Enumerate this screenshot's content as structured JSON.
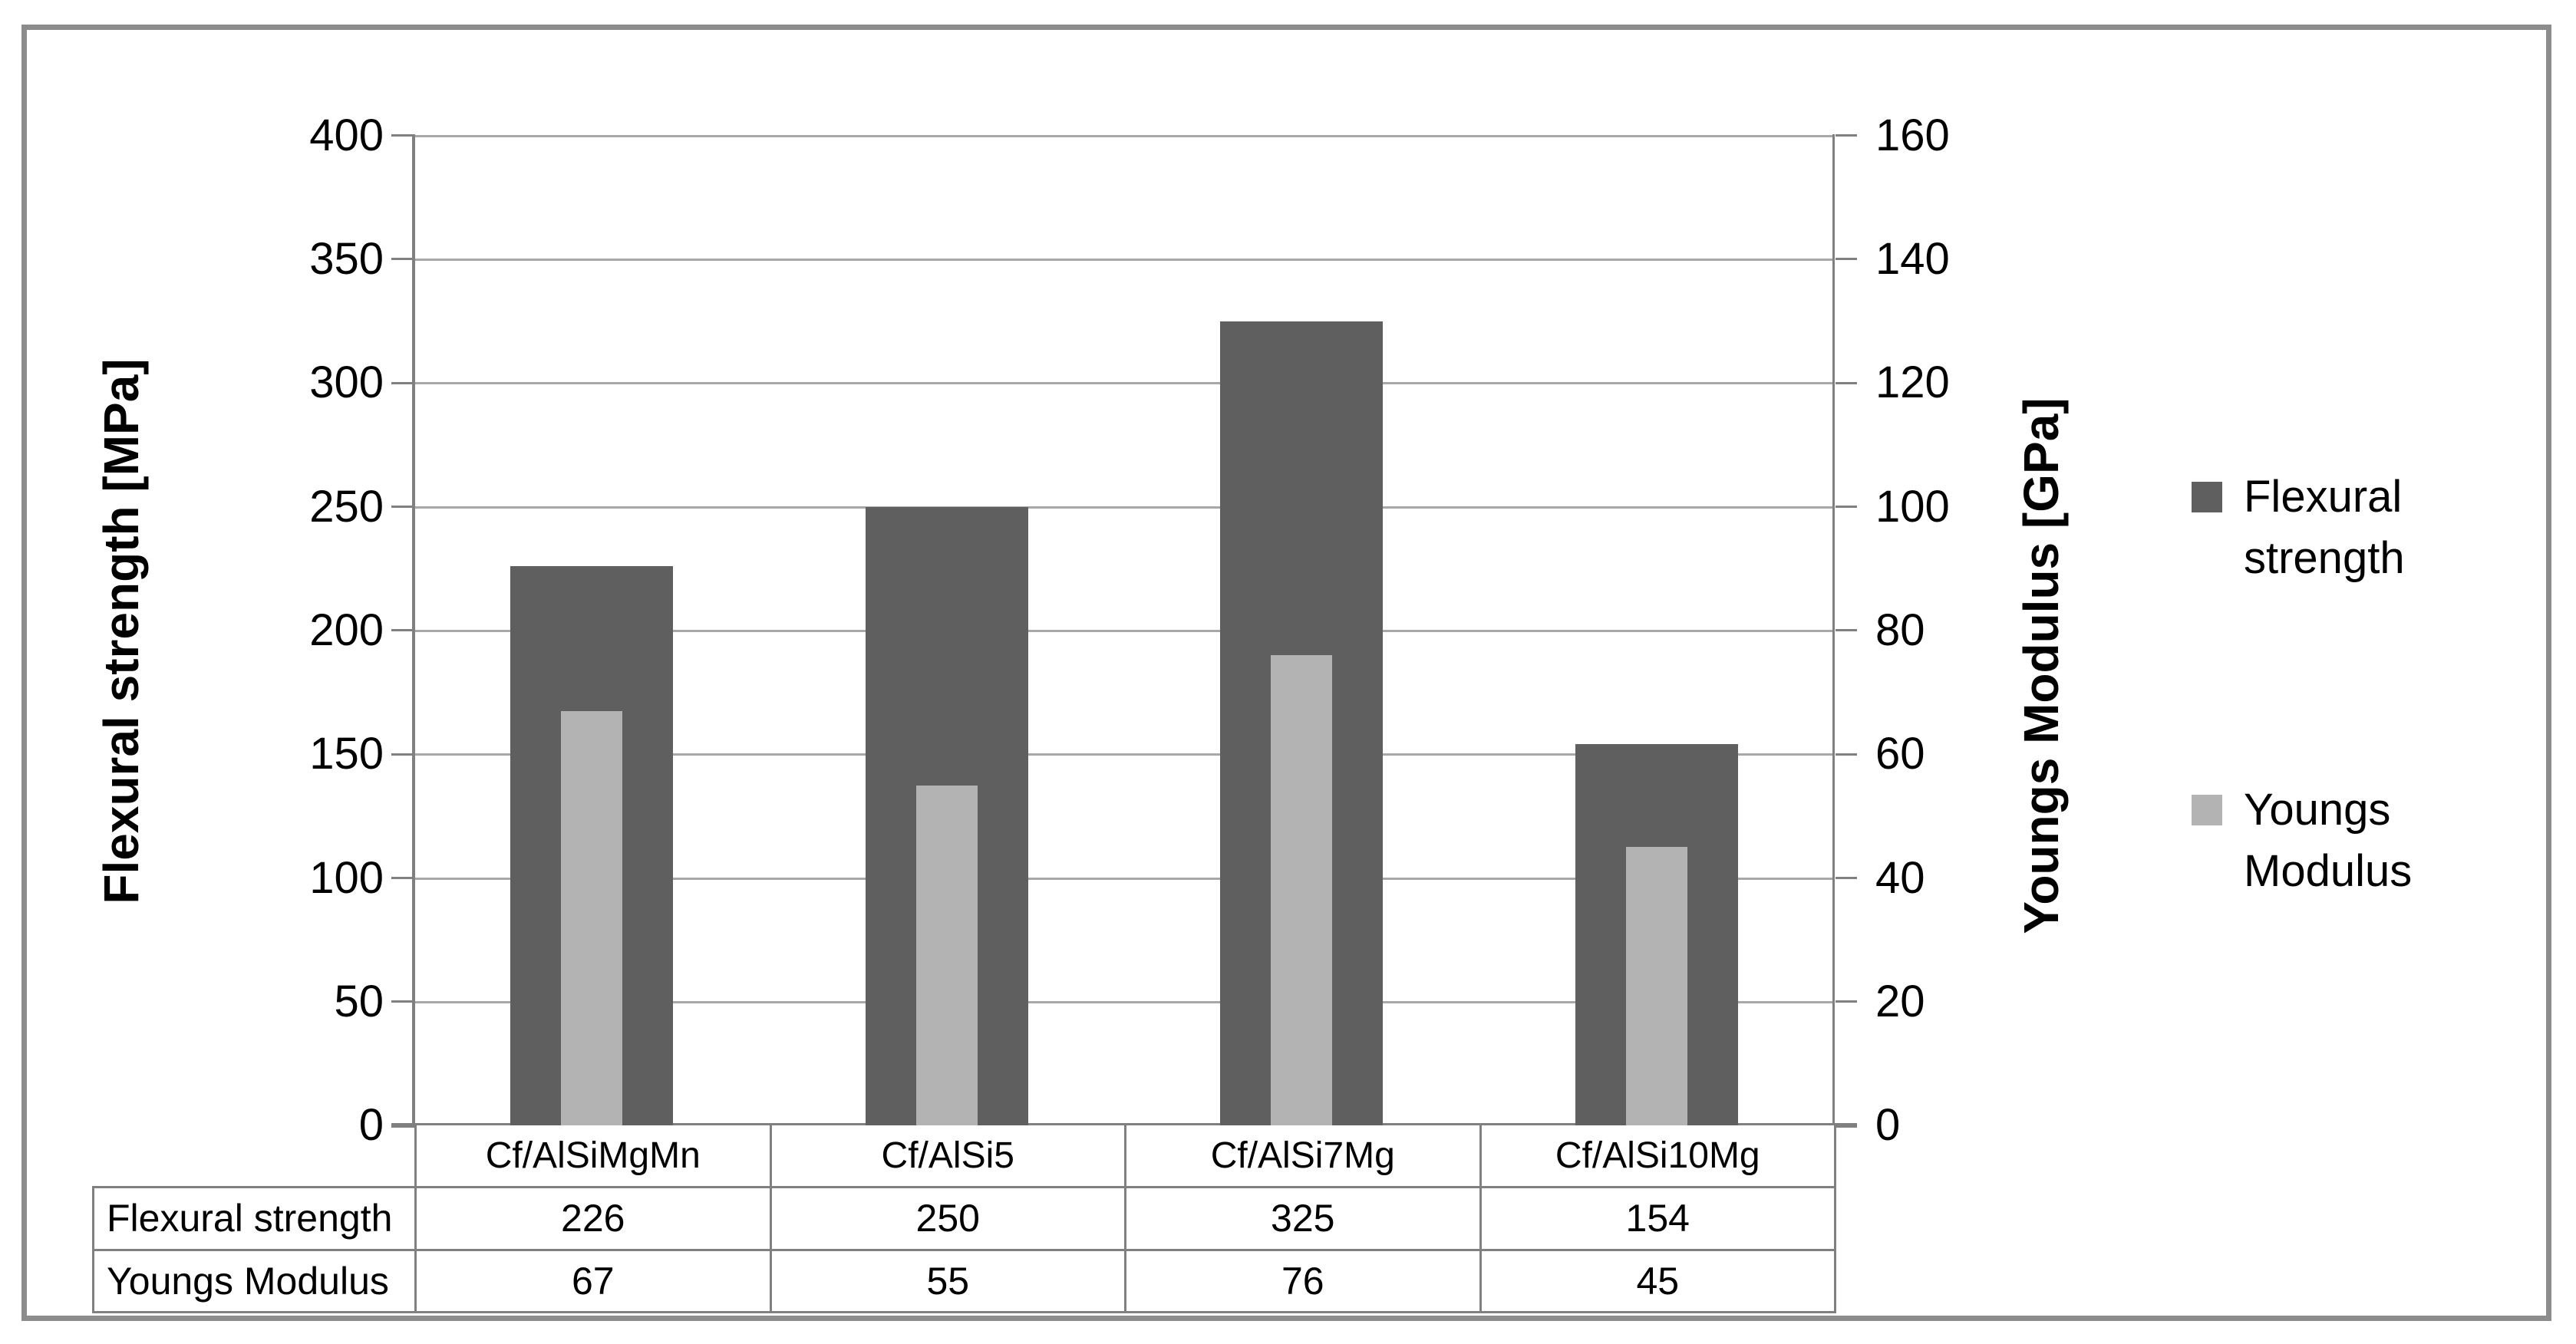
{
  "chart_data": {
    "type": "bar",
    "categories": [
      "Cf/AlSiMgMn",
      "Cf/AlSi5",
      "Cf/AlSi7Mg",
      "Cf/AlSi10Mg"
    ],
    "series": [
      {
        "name": "Flexural strength",
        "axis": "left",
        "color": "#5f5f5f",
        "values": [
          226,
          250,
          325,
          154
        ]
      },
      {
        "name": "Youngs Modulus",
        "axis": "right",
        "color": "#b3b3b3",
        "values": [
          67,
          55,
          76,
          45
        ]
      }
    ],
    "axes": {
      "left": {
        "label": "Flexural strength [MPa]",
        "min": 0,
        "max": 400,
        "ticks": [
          400,
          350,
          300,
          250,
          200,
          150,
          100,
          50,
          0
        ]
      },
      "right": {
        "label": "Youngs Modulus [GPa]",
        "min": 0,
        "max": 160,
        "ticks": [
          160,
          140,
          120,
          100,
          80,
          60,
          40,
          20,
          0
        ]
      }
    },
    "legend": {
      "position": "right"
    },
    "grid": true,
    "data_table": {
      "rows": [
        [
          "226",
          "250",
          "325",
          "154"
        ],
        [
          "67",
          "55",
          "76",
          "45"
        ]
      ]
    },
    "colors": {
      "gridline": "#a8a8a8",
      "axis_line": "#808080",
      "frame_border": "#8c8c8c",
      "background": "#ffffff"
    }
  }
}
